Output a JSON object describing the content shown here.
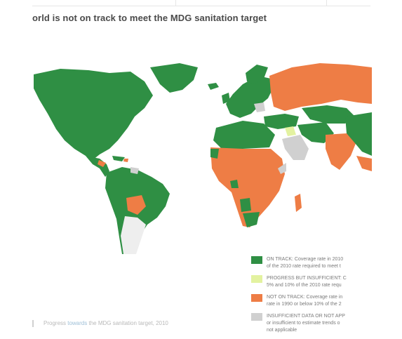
{
  "title": "orld is not on track to meet the MDG sanitation target",
  "legend": [
    {
      "color": "#2f8f44",
      "text": "ON TRACK: Coverage rate in 2010\nof the 2010 rate required to meet t"
    },
    {
      "color": "#e3f2a0",
      "text": "PROGRESS BUT INSUFFICIENT: C\n5% and 10% of the 2010 rate requ"
    },
    {
      "color": "#ee7d45",
      "text": "NOT ON TRACK: Coverage rate in\nrate in 1990 or below 10% of the 2"
    },
    {
      "color": "#d0d0d0",
      "text": "INSUFFICIENT DATA OR NOT APP\nor insufficient to estimate trends o\nnot applicable"
    }
  ],
  "caption": {
    "before": "Progress ",
    "highlight": "towards",
    "after": " the MDG sanitation target, 2010"
  },
  "colors": {
    "on_track": "#2f8f44",
    "insufficient_progress": "#e3f2a0",
    "not_on_track": "#ee7d45",
    "no_data": "#d0d0d0"
  }
}
